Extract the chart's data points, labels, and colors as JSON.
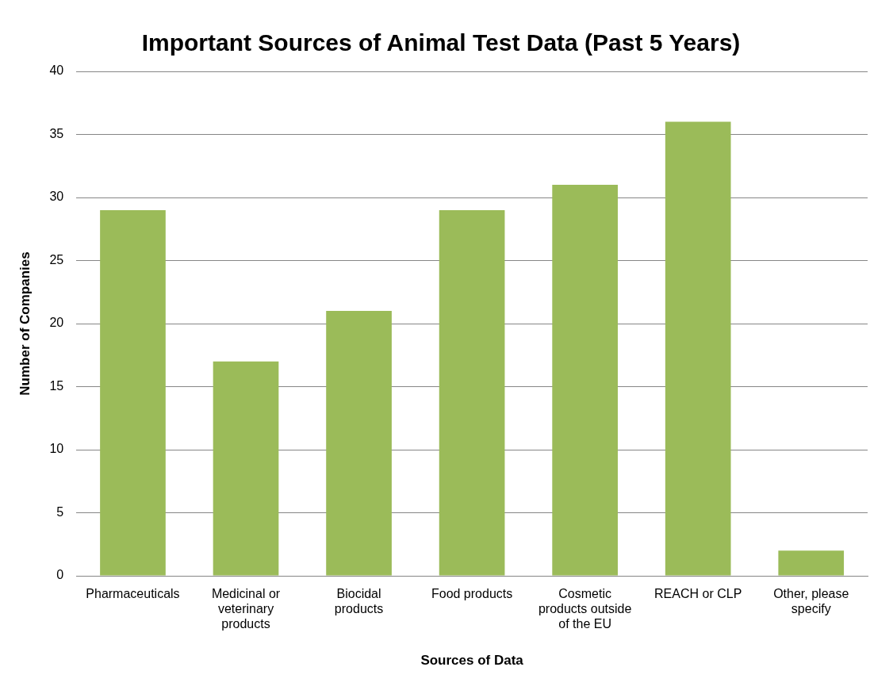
{
  "chart_data": {
    "type": "bar",
    "title": "Important Sources of Animal Test Data (Past 5 Years)",
    "xlabel": "Sources of Data",
    "ylabel": "Number of Companies",
    "categories": [
      "Pharmaceuticals",
      "Medicinal or veterinary products",
      "Biocidal products",
      "Food products",
      "Cosmetic products outside of the EU",
      "REACH or CLP",
      "Other, please specify"
    ],
    "values": [
      29,
      17,
      21,
      29,
      31,
      36,
      2
    ],
    "color": "#9bbb59",
    "ylim": [
      0,
      40
    ],
    "yticks": [
      0,
      5,
      10,
      15,
      20,
      25,
      30,
      35,
      40
    ],
    "grid": "y",
    "legend": false
  }
}
